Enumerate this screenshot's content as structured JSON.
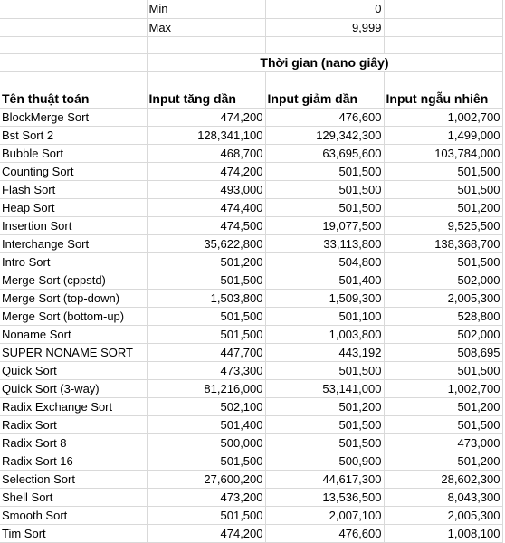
{
  "params": {
    "min_label": "Min",
    "min_value": "0",
    "max_label": "Max",
    "max_value": "9,999"
  },
  "title": "Thời gian (nano giây)",
  "headers": [
    "Tên thuật toán",
    "Input tăng dần",
    "Input giảm dần",
    "Input ngẫu nhiên"
  ],
  "rows": [
    [
      "BlockMerge Sort",
      "474,200",
      "476,600",
      "1,002,700"
    ],
    [
      "Bst Sort 2",
      "128,341,100",
      "129,342,300",
      "1,499,000"
    ],
    [
      "Bubble Sort",
      "468,700",
      "63,695,600",
      "103,784,000"
    ],
    [
      "Counting Sort",
      "474,200",
      "501,500",
      "501,500"
    ],
    [
      "Flash Sort",
      "493,000",
      "501,500",
      "501,500"
    ],
    [
      "Heap Sort",
      "474,400",
      "501,500",
      "501,200"
    ],
    [
      "Insertion Sort",
      "474,500",
      "19,077,500",
      "9,525,500"
    ],
    [
      "Interchange Sort",
      "35,622,800",
      "33,113,800",
      "138,368,700"
    ],
    [
      "Intro Sort",
      "501,200",
      "504,800",
      "501,500"
    ],
    [
      "Merge Sort (cppstd)",
      "501,500",
      "501,400",
      "502,000"
    ],
    [
      "Merge Sort (top-down)",
      "1,503,800",
      "1,509,300",
      "2,005,300"
    ],
    [
      "Merge Sort (bottom-up)",
      "501,500",
      "501,100",
      "528,800"
    ],
    [
      "Noname Sort",
      "501,500",
      "1,003,800",
      "502,000"
    ],
    [
      "SUPER NONAME SORT",
      "447,700",
      "443,192",
      "508,695"
    ],
    [
      "Quick Sort",
      "473,300",
      "501,500",
      "501,500"
    ],
    [
      "Quick Sort (3-way)",
      "81,216,000",
      "53,141,000",
      "1,002,700"
    ],
    [
      "Radix Exchange Sort",
      "502,100",
      "501,200",
      "501,200"
    ],
    [
      "Radix Sort",
      "501,400",
      "501,500",
      "501,500"
    ],
    [
      "Radix Sort 8",
      "500,000",
      "501,500",
      "473,000"
    ],
    [
      "Radix Sort 16",
      "501,500",
      "500,900",
      "501,200"
    ],
    [
      "Selection Sort",
      "27,600,200",
      "44,617,300",
      "28,602,300"
    ],
    [
      "Shell Sort",
      "473,200",
      "13,536,500",
      "8,043,300"
    ],
    [
      "Smooth Sort",
      "501,500",
      "2,007,100",
      "2,005,300"
    ],
    [
      "Tim Sort",
      "474,200",
      "476,600",
      "1,008,100"
    ]
  ]
}
